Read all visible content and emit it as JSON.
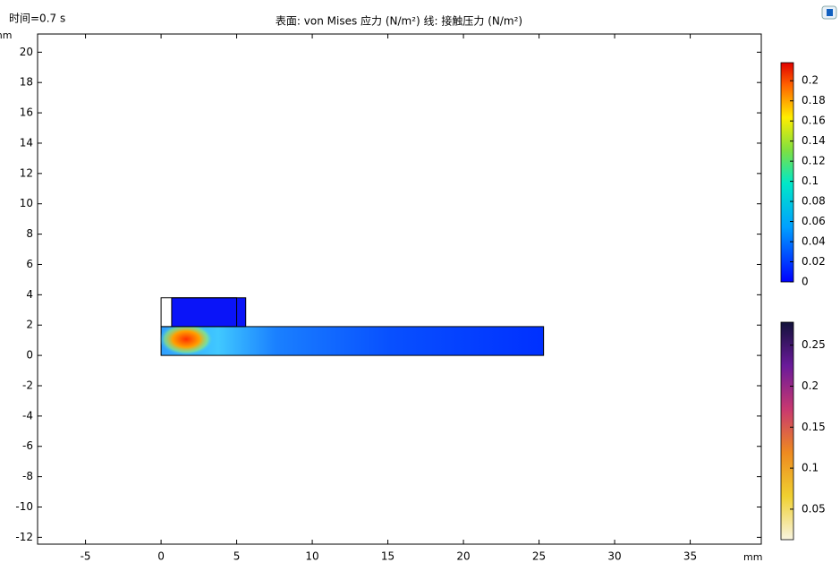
{
  "chart_data": {
    "type": "surface",
    "title": "表面: von Mises 应力 (N/m²)  线: 接触压力 (N/m²)",
    "time_label": "时间=0.7 s",
    "x_unit": "mm",
    "y_unit": "mm",
    "xlim": [
      -8.17,
      39.7
    ],
    "xticks": [
      -5,
      0,
      5,
      10,
      15,
      20,
      25,
      30,
      35
    ],
    "ylim": [
      -12.45,
      21.2
    ],
    "yticks": [
      -12,
      -10,
      -8,
      -6,
      -4,
      -2,
      0,
      2,
      4,
      6,
      8,
      10,
      12,
      14,
      16,
      18,
      20
    ],
    "domains": [
      {
        "x": [
          0,
          25.3
        ],
        "y": [
          0,
          1.9
        ]
      },
      {
        "x": [
          0.7,
          5.6
        ],
        "y": [
          1.9,
          3.8
        ]
      }
    ],
    "colorbars": [
      {
        "lim": [
          0,
          0.218
        ],
        "ticks": [
          0,
          0.02,
          0.04,
          0.06,
          0.08,
          0.1,
          0.12,
          0.14,
          0.16,
          0.18,
          0.2
        ]
      },
      {
        "lim": [
          0.0128,
          0.278
        ],
        "ticks": [
          0.05,
          0.1,
          0.15,
          0.2,
          0.25
        ]
      }
    ]
  }
}
